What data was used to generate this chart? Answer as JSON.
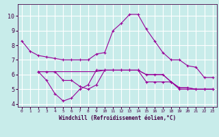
{
  "xlabel": "Windchill (Refroidissement éolien,°C)",
  "bg_color": "#c8ecea",
  "line_color": "#990099",
  "grid_color": "#ffffff",
  "xlim": [
    -0.5,
    23.5
  ],
  "ylim": [
    3.8,
    10.8
  ],
  "yticks": [
    4,
    5,
    6,
    7,
    8,
    9,
    10
  ],
  "xticks": [
    0,
    1,
    2,
    3,
    4,
    5,
    6,
    7,
    8,
    9,
    10,
    11,
    12,
    13,
    14,
    15,
    16,
    17,
    18,
    19,
    20,
    21,
    22,
    23
  ],
  "series": [
    {
      "x": [
        0,
        1,
        2,
        3,
        4,
        5,
        6,
        7,
        8,
        9,
        10,
        11,
        12,
        13,
        14,
        15,
        16,
        17,
        18,
        19,
        20,
        21,
        22,
        23
      ],
      "y": [
        8.3,
        7.6,
        7.3,
        7.2,
        7.1,
        7.0,
        7.0,
        7.0,
        7.0,
        7.4,
        7.5,
        9.0,
        9.5,
        10.1,
        10.1,
        9.1,
        8.3,
        7.5,
        7.0,
        7.0,
        6.6,
        6.5,
        5.8,
        5.8
      ],
      "marker": true
    },
    {
      "x": [
        2,
        3,
        4,
        5,
        6,
        7,
        8,
        9,
        10,
        11,
        12,
        13,
        14,
        15,
        16,
        17,
        18,
        19,
        20,
        21,
        22,
        23
      ],
      "y": [
        6.2,
        6.2,
        6.2,
        5.6,
        5.6,
        5.2,
        5.0,
        5.3,
        6.3,
        6.3,
        6.3,
        6.3,
        6.3,
        6.0,
        6.0,
        6.0,
        5.5,
        5.1,
        5.1,
        5.0,
        5.0,
        5.0
      ],
      "marker": true
    },
    {
      "x": [
        2,
        3,
        4,
        5,
        6,
        7,
        8,
        9,
        10,
        11,
        12,
        13,
        14,
        15,
        16,
        17,
        18,
        19,
        20,
        21,
        22,
        23
      ],
      "y": [
        6.2,
        5.6,
        4.7,
        4.2,
        4.4,
        5.0,
        5.3,
        6.3,
        6.3,
        6.3,
        6.3,
        6.3,
        6.3,
        5.5,
        5.5,
        5.5,
        5.5,
        5.0,
        5.0,
        5.0,
        5.0,
        5.0
      ],
      "marker": true
    },
    {
      "x": [
        2,
        3,
        4,
        5,
        6,
        7,
        8,
        9,
        10,
        11,
        12,
        13,
        14,
        15,
        16,
        17,
        18,
        19,
        20,
        21,
        22,
        23
      ],
      "y": [
        6.2,
        6.2,
        6.2,
        6.2,
        6.2,
        6.2,
        6.2,
        6.2,
        6.3,
        6.3,
        6.3,
        6.3,
        6.3,
        6.0,
        6.0,
        6.0,
        5.5,
        5.1,
        5.1,
        5.0,
        5.0,
        5.0
      ],
      "marker": false
    }
  ]
}
